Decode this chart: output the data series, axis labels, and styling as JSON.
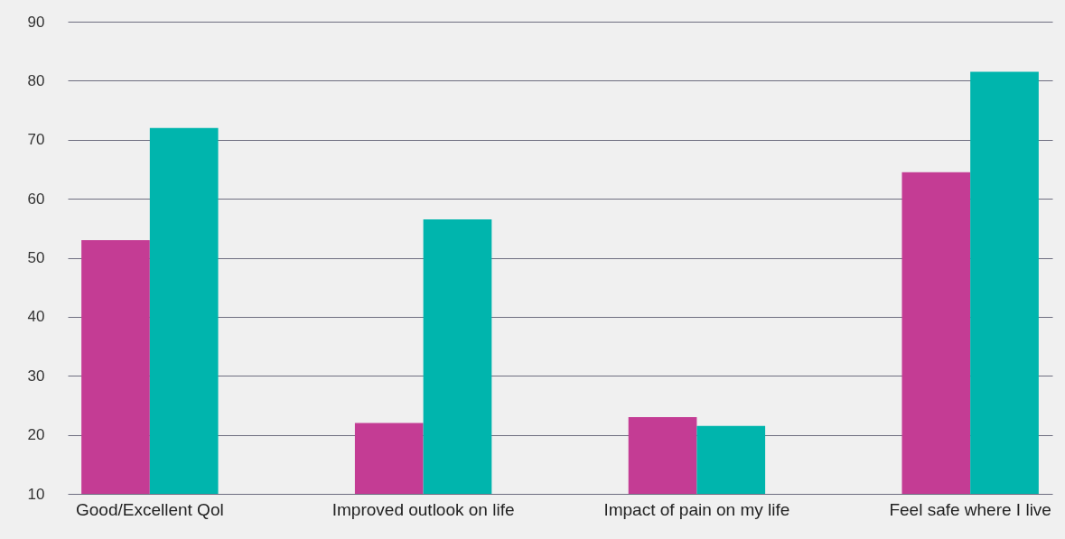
{
  "chart_data": {
    "type": "bar",
    "categories": [
      "Good/Excellent Qol",
      "Improved outlook on life",
      "Impact of pain on my life",
      "Feel safe where I live"
    ],
    "series": [
      {
        "color": "#c43c94",
        "values": [
          53,
          22,
          23,
          64.5
        ]
      },
      {
        "color": "#00b5ad",
        "values": [
          72,
          56.5,
          21.5,
          81.5
        ]
      }
    ],
    "ylim": [
      10,
      90
    ],
    "yticks": [
      10,
      20,
      30,
      40,
      50,
      60,
      70,
      80,
      90
    ],
    "grid": "y"
  }
}
